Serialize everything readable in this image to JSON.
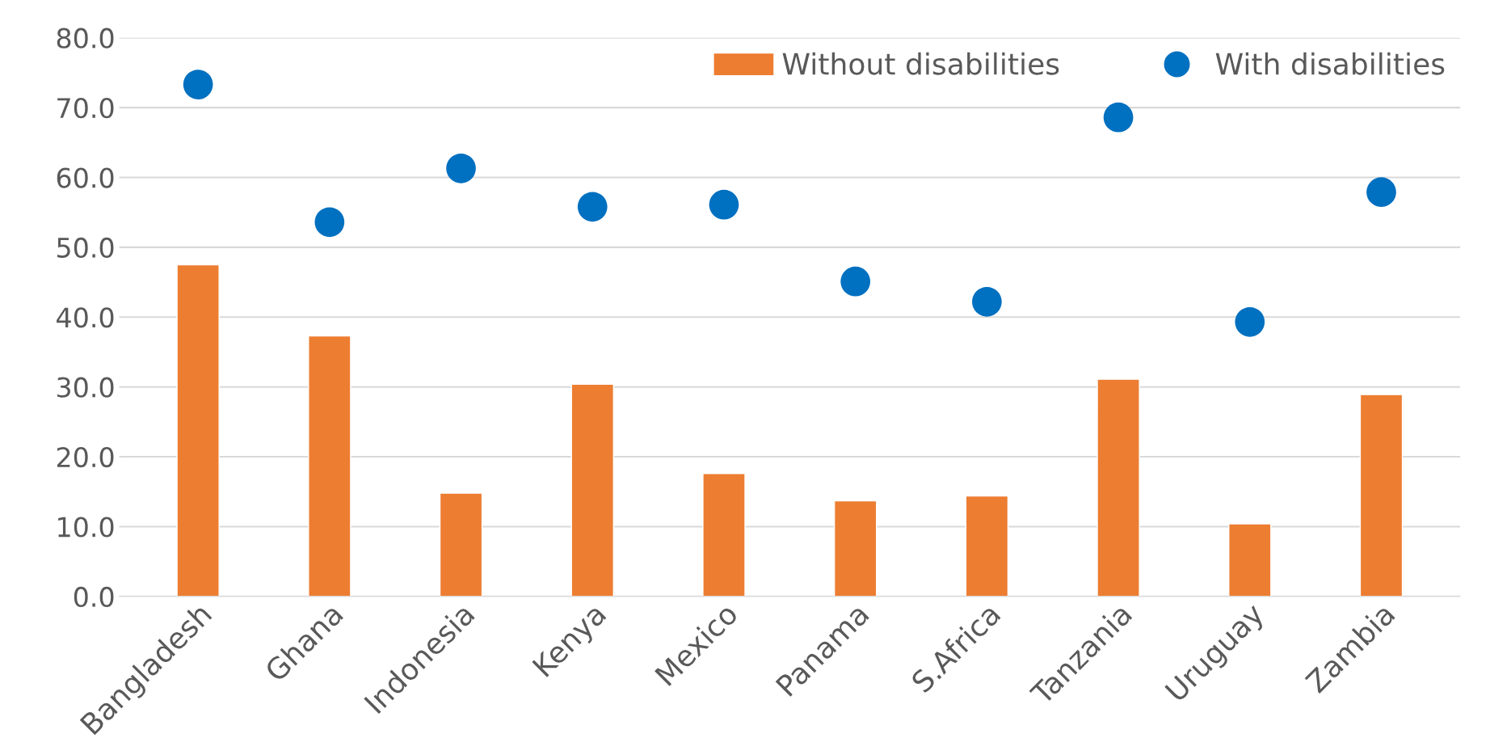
{
  "chart_data": {
    "type": "bar",
    "categories": [
      "Bangladesh",
      "Ghana",
      "Indonesia",
      "Kenya",
      "Mexico",
      "Panama",
      "S.Africa",
      "Tanzania",
      "Uruguay",
      "Zambia"
    ],
    "series": [
      {
        "name": "Without disabilities",
        "color": "#ed7d31",
        "values": [
          47.5,
          37.3,
          14.8,
          30.4,
          17.6,
          13.7,
          14.4,
          31.1,
          10.4,
          28.9
        ]
      },
      {
        "name": "With disabilities",
        "type": "scatter",
        "color": "#0070c0",
        "values": [
          73.3,
          53.6,
          61.3,
          55.8,
          56.1,
          45.1,
          42.2,
          68.6,
          39.3,
          57.9
        ]
      }
    ],
    "ylim": [
      0,
      80
    ],
    "yticks": [
      {
        "value": 0,
        "label": "0.0"
      },
      {
        "value": 10,
        "label": "10.0"
      },
      {
        "value": 20,
        "label": "20.0"
      },
      {
        "value": 30,
        "label": "30.0"
      },
      {
        "value": 40,
        "label": "40.0"
      },
      {
        "value": 50,
        "label": "50.0"
      },
      {
        "value": 60,
        "label": "60.0"
      },
      {
        "value": 70,
        "label": "70.0"
      },
      {
        "value": 80,
        "label": "80.0"
      }
    ],
    "grid": "y",
    "legend": "top right",
    "marker": "circle"
  }
}
